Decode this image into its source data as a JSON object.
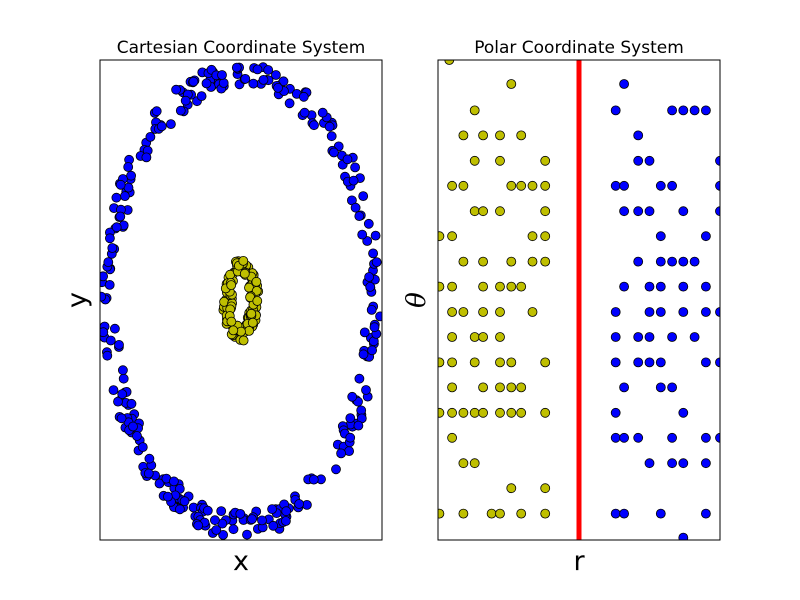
{
  "chart_data": [
    {
      "type": "scatter",
      "title": "Cartesian Coordinate System",
      "xlabel": "x",
      "ylabel": "y",
      "xlim": [
        -2.6,
        2.6
      ],
      "ylim": [
        -2.6,
        2.6
      ],
      "ticks": "none",
      "grid": false,
      "series": [
        {
          "color": "#0000ff",
          "shape": "ring",
          "rx": [
            2.3,
            2.58
          ],
          "ry": [
            2.3,
            2.58
          ],
          "count": 320
        },
        {
          "color": "#bfbf00",
          "shape": "ring",
          "rx": [
            0.16,
            0.34
          ],
          "ry": [
            0.3,
            0.45
          ],
          "count": 130
        }
      ]
    },
    {
      "type": "scatter",
      "title": "Polar Coordinate System",
      "xlabel": "r",
      "ylabel": "θ",
      "xlim": [
        0,
        1
      ],
      "ylim": [
        0,
        1
      ],
      "ticks": "none",
      "grid": false,
      "vline": {
        "x": 0.5,
        "color": "#ff0000"
      },
      "series": [
        {
          "color": "#bfbf00",
          "points": [
            [
              0.04,
              1.0
            ],
            [
              0.26,
              0.95
            ],
            [
              0.13,
              0.895
            ],
            [
              0.09,
              0.843
            ],
            [
              0.16,
              0.843
            ],
            [
              0.22,
              0.843
            ],
            [
              0.295,
              0.843
            ],
            [
              0.13,
              0.79
            ],
            [
              0.22,
              0.79
            ],
            [
              0.38,
              0.79
            ],
            [
              0.05,
              0.738
            ],
            [
              0.09,
              0.738
            ],
            [
              0.26,
              0.738
            ],
            [
              0.295,
              0.738
            ],
            [
              0.335,
              0.738
            ],
            [
              0.38,
              0.738
            ],
            [
              0.13,
              0.685
            ],
            [
              0.16,
              0.685
            ],
            [
              0.22,
              0.685
            ],
            [
              0.38,
              0.685
            ],
            [
              0.005,
              0.633
            ],
            [
              0.05,
              0.633
            ],
            [
              0.335,
              0.633
            ],
            [
              0.38,
              0.633
            ],
            [
              0.09,
              0.58
            ],
            [
              0.16,
              0.58
            ],
            [
              0.26,
              0.58
            ],
            [
              0.335,
              0.58
            ],
            [
              0.38,
              0.58
            ],
            [
              0.005,
              0.528
            ],
            [
              0.05,
              0.528
            ],
            [
              0.16,
              0.528
            ],
            [
              0.22,
              0.528
            ],
            [
              0.26,
              0.528
            ],
            [
              0.295,
              0.528
            ],
            [
              0.05,
              0.475
            ],
            [
              0.09,
              0.475
            ],
            [
              0.16,
              0.475
            ],
            [
              0.22,
              0.475
            ],
            [
              0.335,
              0.475
            ],
            [
              0.05,
              0.423
            ],
            [
              0.13,
              0.423
            ],
            [
              0.16,
              0.423
            ],
            [
              0.22,
              0.423
            ],
            [
              0.005,
              0.37
            ],
            [
              0.05,
              0.37
            ],
            [
              0.13,
              0.37
            ],
            [
              0.22,
              0.37
            ],
            [
              0.26,
              0.37
            ],
            [
              0.38,
              0.37
            ],
            [
              0.05,
              0.318
            ],
            [
              0.16,
              0.318
            ],
            [
              0.22,
              0.318
            ],
            [
              0.26,
              0.318
            ],
            [
              0.295,
              0.318
            ],
            [
              0.005,
              0.265
            ],
            [
              0.05,
              0.265
            ],
            [
              0.09,
              0.265
            ],
            [
              0.13,
              0.265
            ],
            [
              0.16,
              0.265
            ],
            [
              0.22,
              0.265
            ],
            [
              0.26,
              0.265
            ],
            [
              0.295,
              0.265
            ],
            [
              0.38,
              0.265
            ],
            [
              0.05,
              0.213
            ],
            [
              0.09,
              0.16
            ],
            [
              0.13,
              0.16
            ],
            [
              0.26,
              0.108
            ],
            [
              0.38,
              0.108
            ],
            [
              0.005,
              0.055
            ],
            [
              0.09,
              0.055
            ],
            [
              0.19,
              0.055
            ],
            [
              0.22,
              0.055
            ],
            [
              0.295,
              0.055
            ],
            [
              0.38,
              0.055
            ]
          ]
        },
        {
          "color": "#0000ff",
          "points": [
            [
              0.66,
              0.95
            ],
            [
              0.63,
              0.895
            ],
            [
              0.83,
              0.895
            ],
            [
              0.87,
              0.895
            ],
            [
              0.91,
              0.895
            ],
            [
              0.95,
              0.895
            ],
            [
              0.71,
              0.843
            ],
            [
              0.71,
              0.79
            ],
            [
              0.75,
              0.79
            ],
            [
              1.0,
              0.79
            ],
            [
              0.63,
              0.738
            ],
            [
              0.66,
              0.738
            ],
            [
              0.79,
              0.738
            ],
            [
              0.83,
              0.738
            ],
            [
              1.0,
              0.738
            ],
            [
              0.66,
              0.685
            ],
            [
              0.71,
              0.685
            ],
            [
              0.75,
              0.685
            ],
            [
              0.87,
              0.685
            ],
            [
              1.0,
              0.685
            ],
            [
              0.79,
              0.633
            ],
            [
              0.95,
              0.633
            ],
            [
              0.71,
              0.58
            ],
            [
              0.79,
              0.58
            ],
            [
              0.83,
              0.58
            ],
            [
              0.87,
              0.58
            ],
            [
              0.91,
              0.58
            ],
            [
              0.66,
              0.528
            ],
            [
              0.75,
              0.528
            ],
            [
              0.79,
              0.528
            ],
            [
              0.87,
              0.528
            ],
            [
              0.95,
              0.528
            ],
            [
              0.63,
              0.475
            ],
            [
              0.75,
              0.475
            ],
            [
              0.79,
              0.475
            ],
            [
              0.87,
              0.475
            ],
            [
              0.95,
              0.475
            ],
            [
              1.0,
              0.475
            ],
            [
              0.63,
              0.423
            ],
            [
              0.71,
              0.423
            ],
            [
              0.75,
              0.423
            ],
            [
              0.83,
              0.423
            ],
            [
              0.91,
              0.423
            ],
            [
              0.63,
              0.37
            ],
            [
              0.71,
              0.37
            ],
            [
              0.75,
              0.37
            ],
            [
              0.79,
              0.37
            ],
            [
              0.95,
              0.37
            ],
            [
              1.0,
              0.37
            ],
            [
              0.66,
              0.318
            ],
            [
              0.79,
              0.318
            ],
            [
              0.83,
              0.318
            ],
            [
              0.63,
              0.265
            ],
            [
              0.87,
              0.265
            ],
            [
              0.63,
              0.213
            ],
            [
              0.66,
              0.213
            ],
            [
              0.71,
              0.213
            ],
            [
              0.83,
              0.213
            ],
            [
              0.95,
              0.213
            ],
            [
              1.0,
              0.213
            ],
            [
              0.75,
              0.16
            ],
            [
              0.83,
              0.16
            ],
            [
              0.87,
              0.16
            ],
            [
              0.95,
              0.16
            ],
            [
              0.63,
              0.055
            ],
            [
              0.66,
              0.055
            ],
            [
              0.79,
              0.055
            ],
            [
              0.95,
              0.055
            ],
            [
              0.87,
              0.005
            ]
          ]
        }
      ]
    }
  ]
}
